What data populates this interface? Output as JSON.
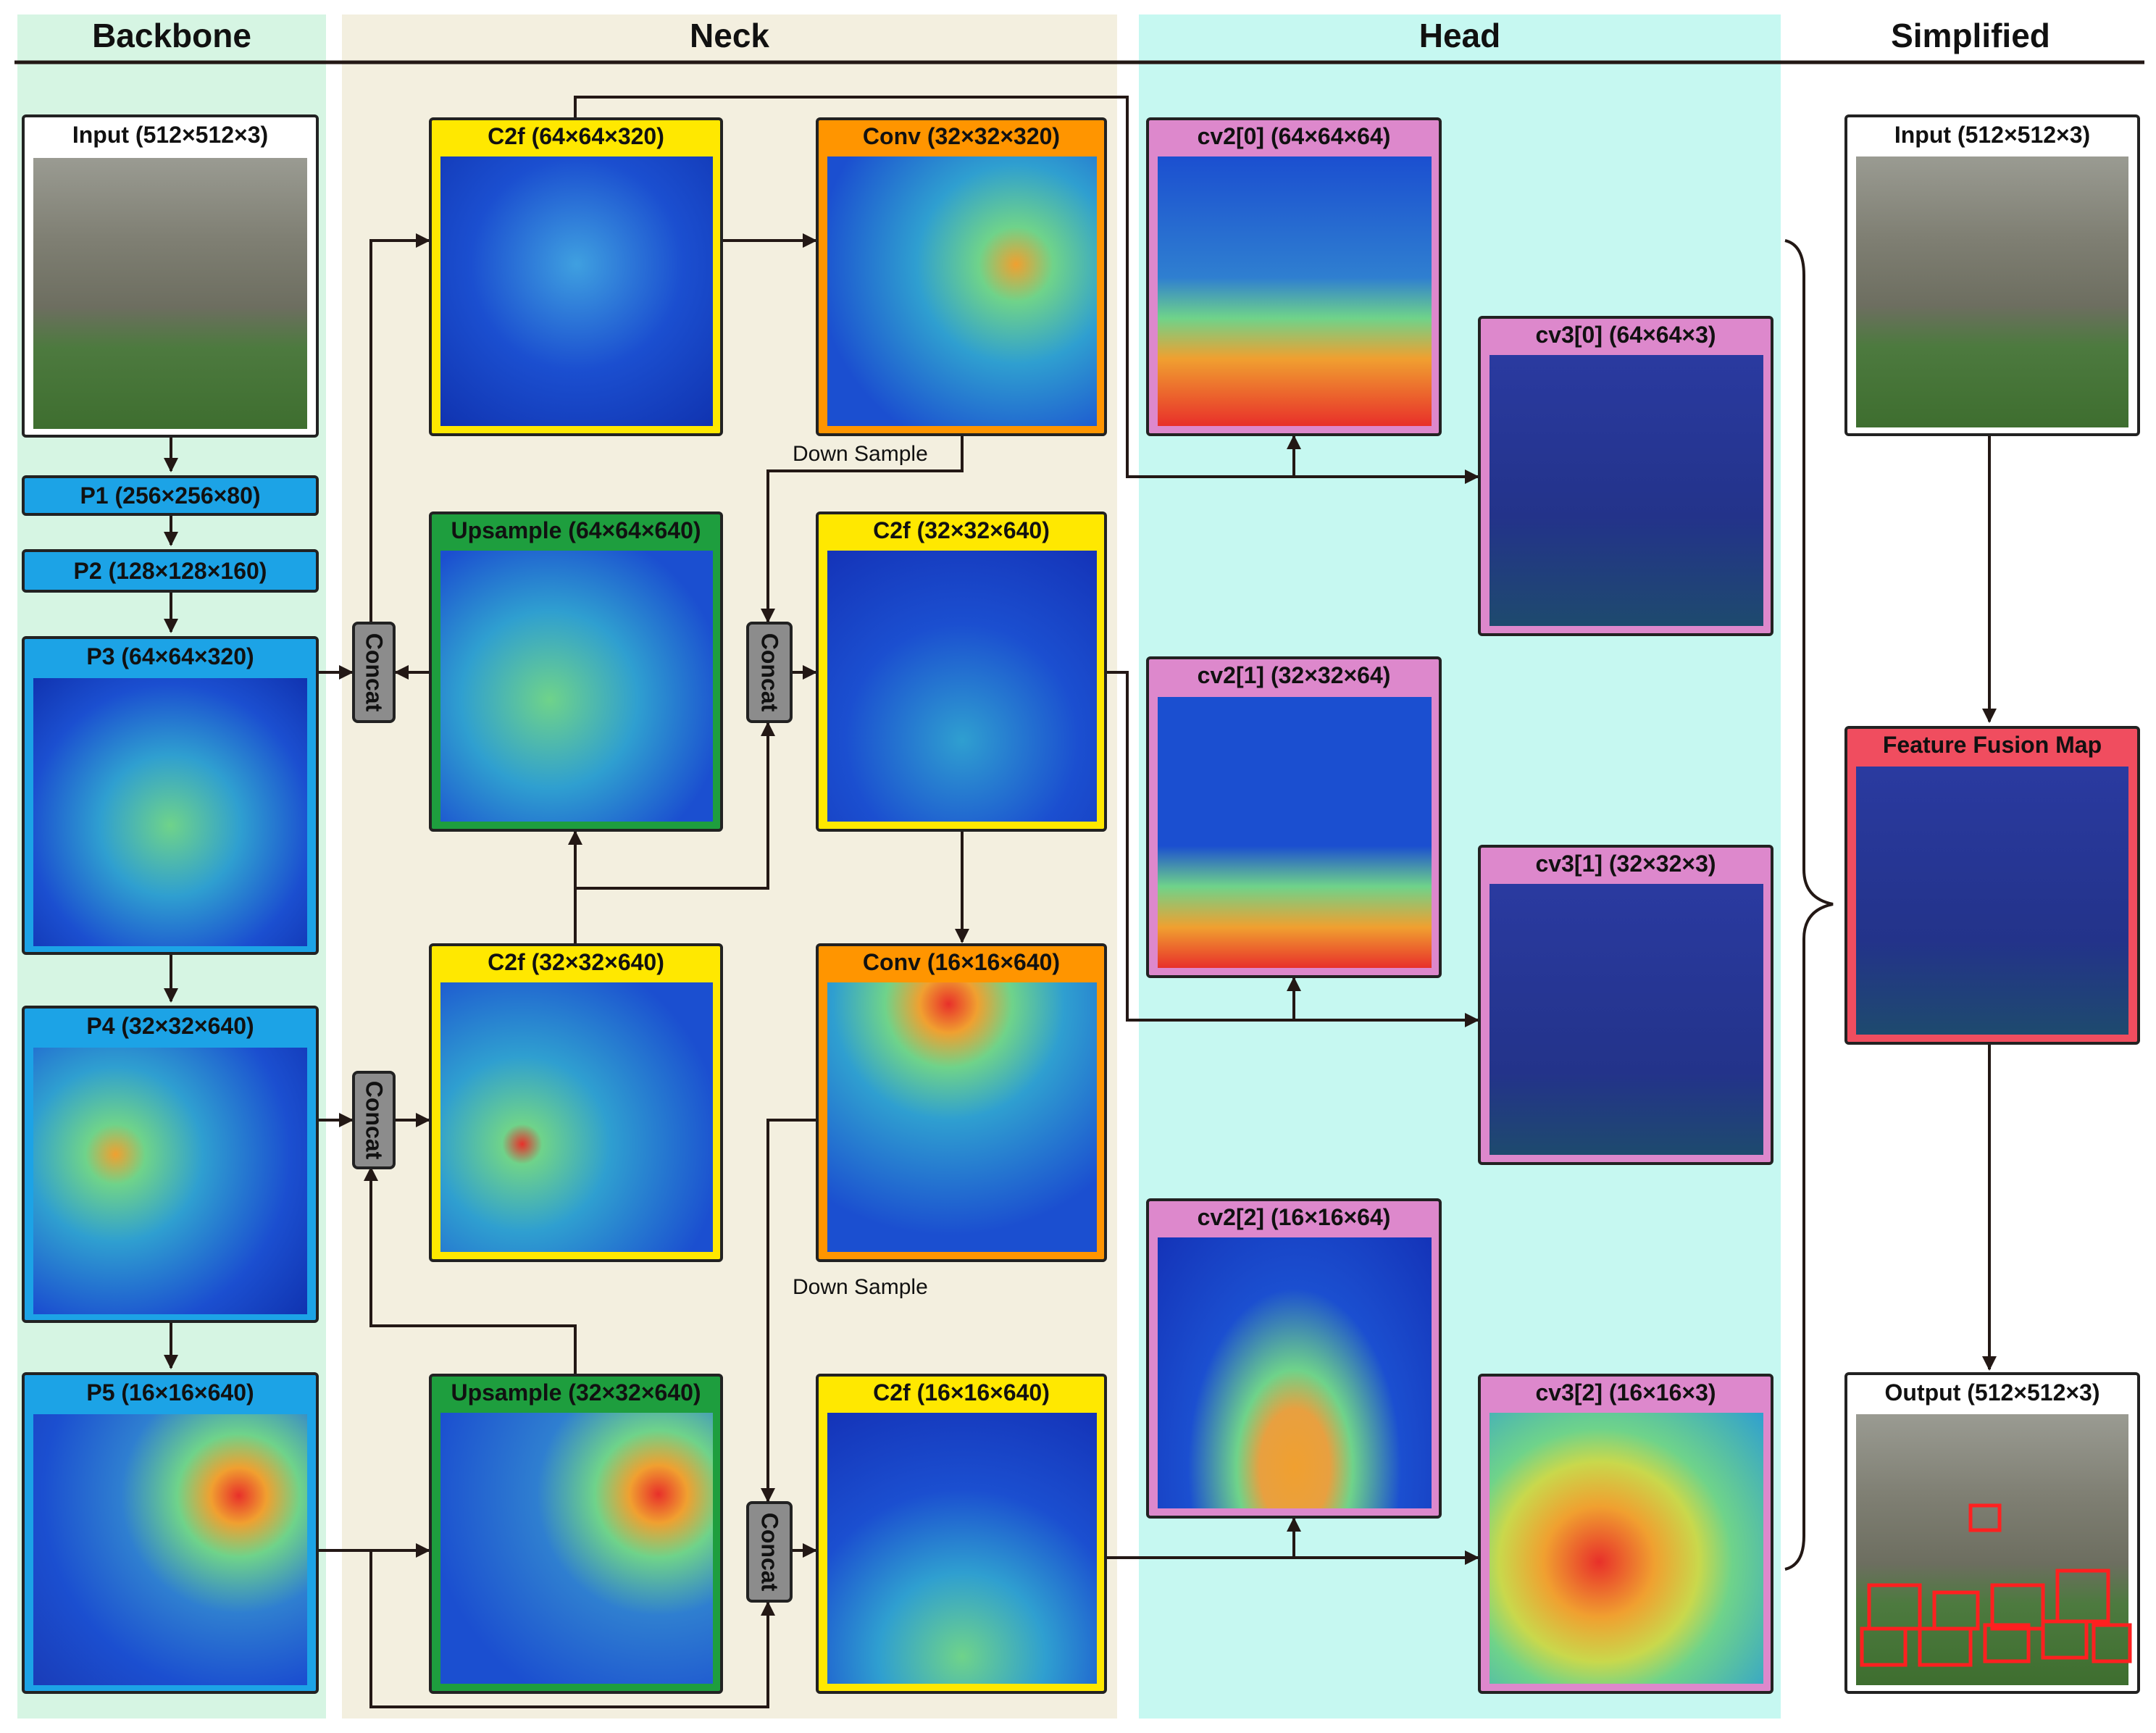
{
  "sections": {
    "backbone": "Backbone",
    "neck": "Neck",
    "head": "Head",
    "simplified": "Simplified"
  },
  "backbone": {
    "input": "Input (512×512×3)",
    "p1": "P1 (256×256×80)",
    "p2": "P2 (128×128×160)",
    "p3": "P3 (64×64×320)",
    "p4": "P4 (32×32×640)",
    "p5": "P5 (16×16×640)"
  },
  "neck": {
    "c2f_top": "C2f   (64×64×320)",
    "conv_top": "Conv (32×32×320)",
    "upsample_top": "Upsample (64×64×640)",
    "c2f_mid_right": "C2f (32×32×640)",
    "c2f_mid_left": "C2f  (32×32×640)",
    "conv_mid": "Conv (16×16×640)",
    "upsample_bottom": "Upsample (32×32×640)",
    "c2f_bottom": "C2f (16×16×640)",
    "concat": "Concat",
    "down_sample": "Down Sample"
  },
  "head": {
    "cv2_0": "cv2[0] (64×64×64)",
    "cv3_0": "cv3[0] (64×64×3)",
    "cv2_1": "cv2[1] (32×32×64)",
    "cv3_1": "cv3[1] (32×32×3)",
    "cv2_2": "cv2[2] (16×16×64)",
    "cv3_2": "cv3[2] (16×16×3)"
  },
  "simplified": {
    "input": "Input (512×512×3)",
    "fusion": "Feature Fusion Map",
    "output": "Output (512×512×3)"
  },
  "colors": {
    "backbone_bg": "#d6f5e3",
    "neck_bg": "#f3efdf",
    "head_bg": "#c6f8f1",
    "blue_box": "#1ca3e6",
    "yellow_box": "#ffe800",
    "orange_box": "#ff9500",
    "green_box": "#1e9e3e",
    "pink_box": "#dd88cc",
    "red_box": "#f04d5f",
    "concat": "#8c8c8c",
    "arrow": "#231815"
  }
}
